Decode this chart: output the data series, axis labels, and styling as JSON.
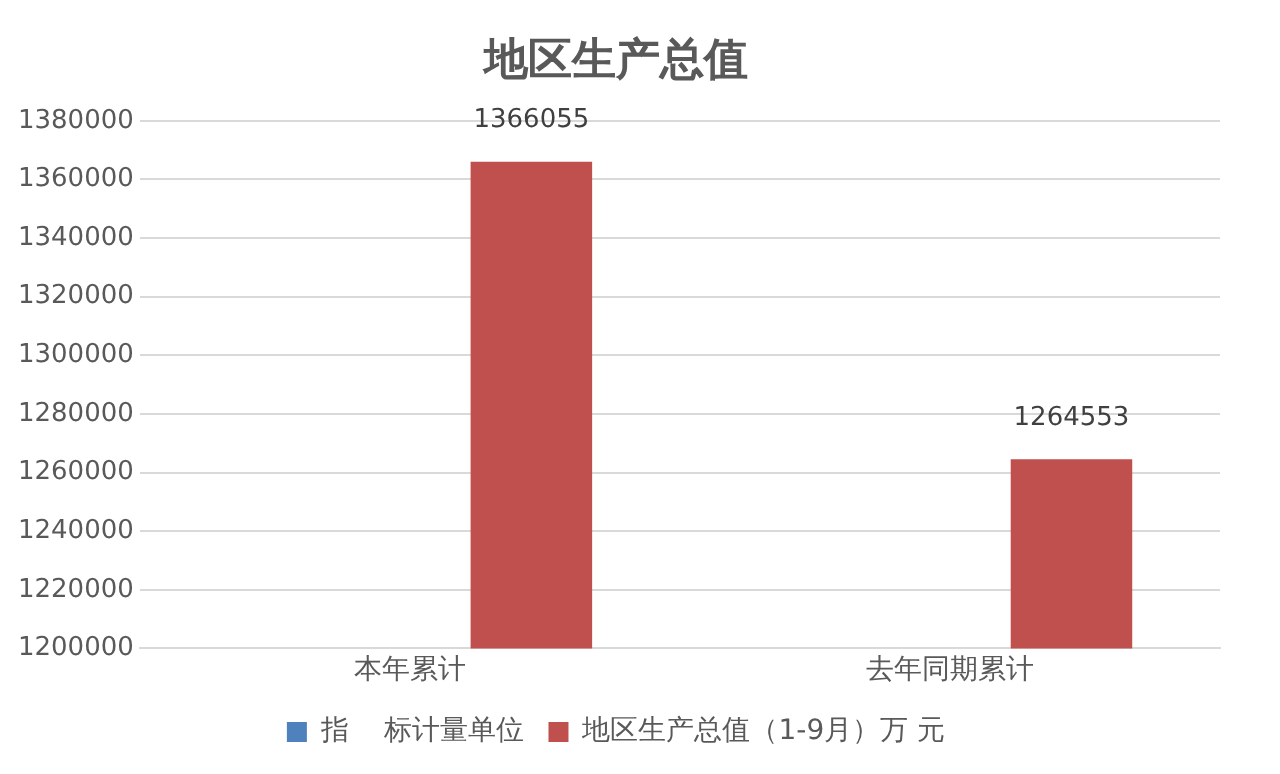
{
  "chart_data": {
    "type": "bar",
    "title": "地区生产总值",
    "categories": [
      "本年累计",
      "去年同期累计"
    ],
    "series": [
      {
        "name": "指    标计量单位",
        "color": "#4f81bd",
        "values": [
          null,
          null
        ]
      },
      {
        "name": "地区生产总值（1-9月）万 元",
        "color": "#c0504d",
        "values": [
          1366055,
          1264553
        ]
      }
    ],
    "ylim": [
      1200000,
      1380000
    ],
    "yticks": [
      1200000,
      1220000,
      1240000,
      1260000,
      1280000,
      1300000,
      1320000,
      1340000,
      1360000,
      1380000
    ],
    "grid": "y",
    "legend": "bottom",
    "data_labels": true
  }
}
